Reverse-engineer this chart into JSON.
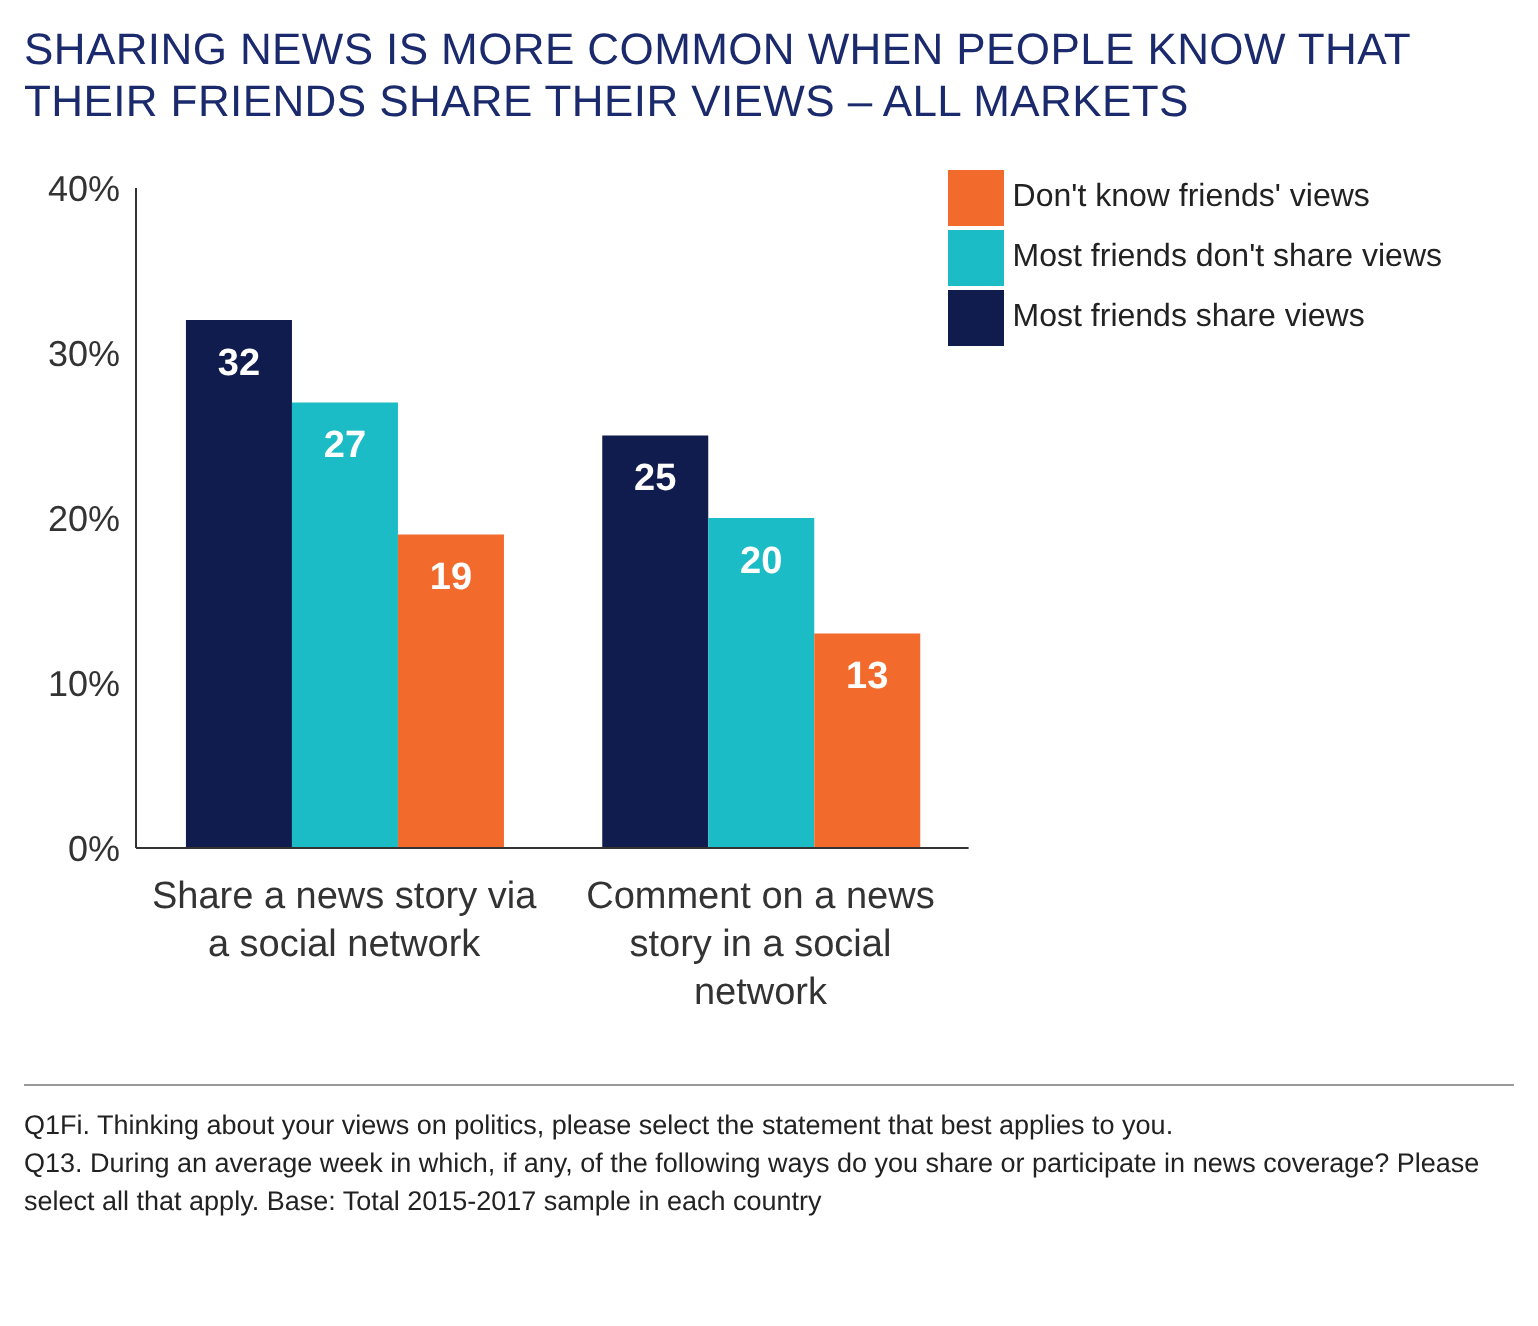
{
  "chart_data": {
    "type": "bar",
    "title": "SHARING NEWS IS MORE COMMON WHEN PEOPLE KNOW THAT THEIR FRIENDS SHARE THEIR VIEWS – ALL MARKETS",
    "categories": [
      "Share a news story via a social network",
      "Comment on a news story in a social network"
    ],
    "series": [
      {
        "name": "Most friends share views",
        "color": "#0f1c4d",
        "values": [
          32,
          25
        ]
      },
      {
        "name": "Most friends don't share views",
        "color": "#1bbcc6",
        "values": [
          27,
          20
        ]
      },
      {
        "name": "Don't know friends' views",
        "color": "#f26b2c",
        "values": [
          19,
          13
        ]
      }
    ],
    "ylim": [
      0,
      40
    ],
    "yticks": [
      {
        "value": 0,
        "label": "0%"
      },
      {
        "value": 10,
        "label": "10%"
      },
      {
        "value": 20,
        "label": "20%"
      },
      {
        "value": 30,
        "label": "30%"
      },
      {
        "value": 40,
        "label": "40%"
      }
    ],
    "grid": false,
    "legend": "top right",
    "data_labels": true,
    "annotations": [
      "Q1Fi. Thinking about your views on politics, please select the statement that best applies to you.",
      "Q13. During an average week in which, if any, of the following ways do you share or participate in news coverage? Please select all that apply. Base: Total 2015-2017 sample in each country"
    ]
  }
}
